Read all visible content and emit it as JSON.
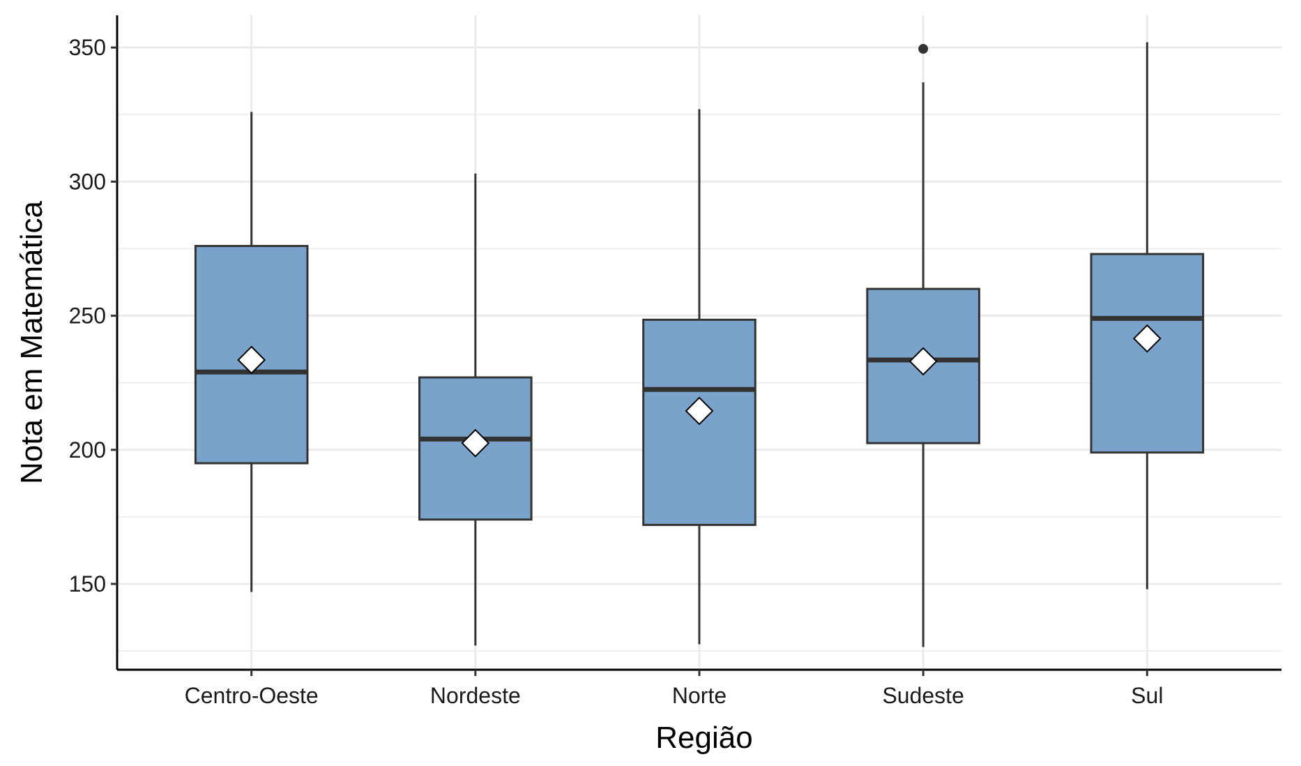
{
  "chart_data": {
    "type": "boxplot",
    "xlabel": "Região",
    "ylabel": "Nota em Matemática",
    "ylim": [
      118,
      362
    ],
    "y_ticks": [
      150,
      200,
      250,
      300,
      350
    ],
    "y_minor_ticks": [
      125,
      175,
      225,
      275,
      325
    ],
    "grid": true,
    "colors": {
      "box_fill": "#7aa3cc",
      "box_stroke": "#333333",
      "grid": "#ebebeb",
      "mean_marker": "#ffffff"
    },
    "categories": [
      "Centro-Oeste",
      "Nordeste",
      "Norte",
      "Sudeste",
      "Sul"
    ],
    "series": [
      {
        "category": "Centro-Oeste",
        "whisker_low": 147,
        "q1": 195,
        "median": 229,
        "q3": 276,
        "whisker_high": 326,
        "mean": 233.5,
        "outliers": []
      },
      {
        "category": "Nordeste",
        "whisker_low": 127,
        "q1": 174,
        "median": 204,
        "q3": 227,
        "whisker_high": 303,
        "mean": 202.5,
        "outliers": []
      },
      {
        "category": "Norte",
        "whisker_low": 127.5,
        "q1": 172,
        "median": 222.5,
        "q3": 248.5,
        "whisker_high": 327,
        "mean": 214.5,
        "outliers": []
      },
      {
        "category": "Sudeste",
        "whisker_low": 126.5,
        "q1": 202.5,
        "median": 233.5,
        "q3": 260,
        "whisker_high": 337,
        "mean": 233,
        "outliers": [
          349.5
        ]
      },
      {
        "category": "Sul",
        "whisker_low": 148,
        "q1": 199,
        "median": 249,
        "q3": 273,
        "whisker_high": 352,
        "mean": 241.5,
        "outliers": []
      }
    ]
  }
}
